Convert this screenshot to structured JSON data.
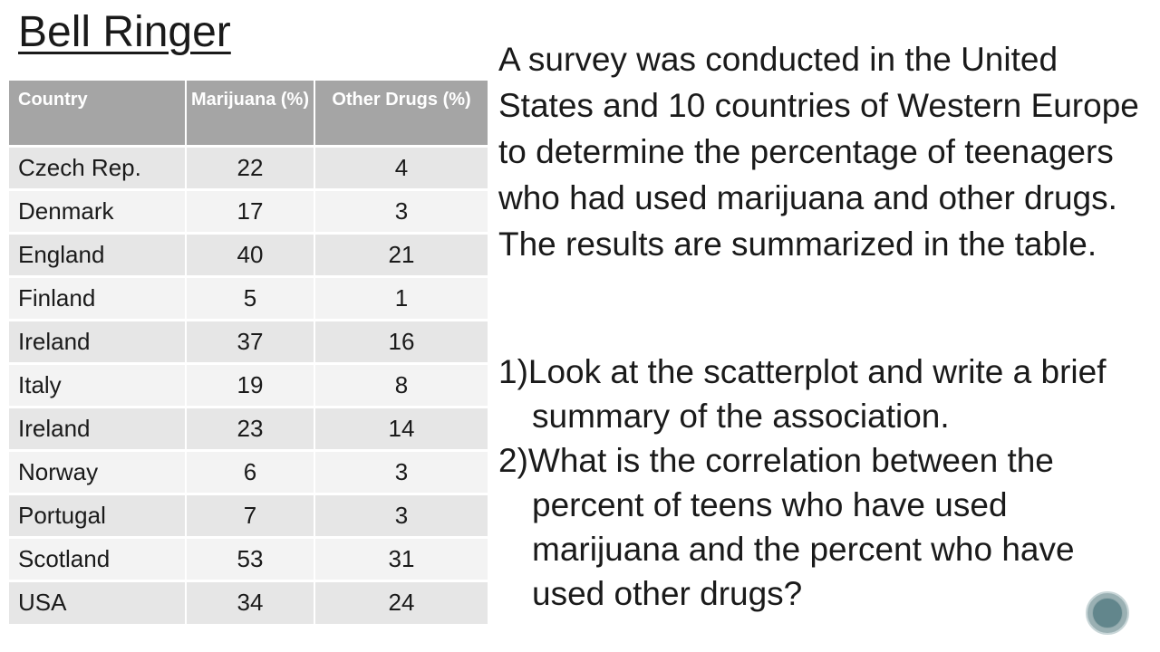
{
  "title": "Bell Ringer",
  "table": {
    "headers": [
      "Country",
      "Marijuana (%)",
      "Other Drugs (%)"
    ],
    "rows": [
      [
        "Czech Rep.",
        "22",
        "4"
      ],
      [
        "Denmark",
        "17",
        "3"
      ],
      [
        "England",
        "40",
        "21"
      ],
      [
        "Finland",
        "5",
        "1"
      ],
      [
        "Ireland",
        "37",
        "16"
      ],
      [
        "Italy",
        "19",
        "8"
      ],
      [
        "Ireland",
        "23",
        "14"
      ],
      [
        "Norway",
        "6",
        "3"
      ],
      [
        "Portugal",
        "7",
        "3"
      ],
      [
        "Scotland",
        "53",
        "31"
      ],
      [
        "USA",
        "34",
        "24"
      ]
    ]
  },
  "intro": "A survey was conducted in the United States and 10 countries of Western Europe to determine the percentage of teenagers who had used marijuana and other drugs. The results are summarized in the table.",
  "questions": [
    "1)Look at the scatterplot and write a brief summary of the association.",
    "2)What is the correlation between the percent of teens who have used marijuana and the percent who have used other drugs?"
  ],
  "nav": {
    "icon": "circle-nav-icon"
  },
  "colors": {
    "header_bg": "#a5a5a5",
    "row_odd": "#e6e6e6",
    "row_even": "#f3f3f3",
    "button": "#62868c"
  }
}
